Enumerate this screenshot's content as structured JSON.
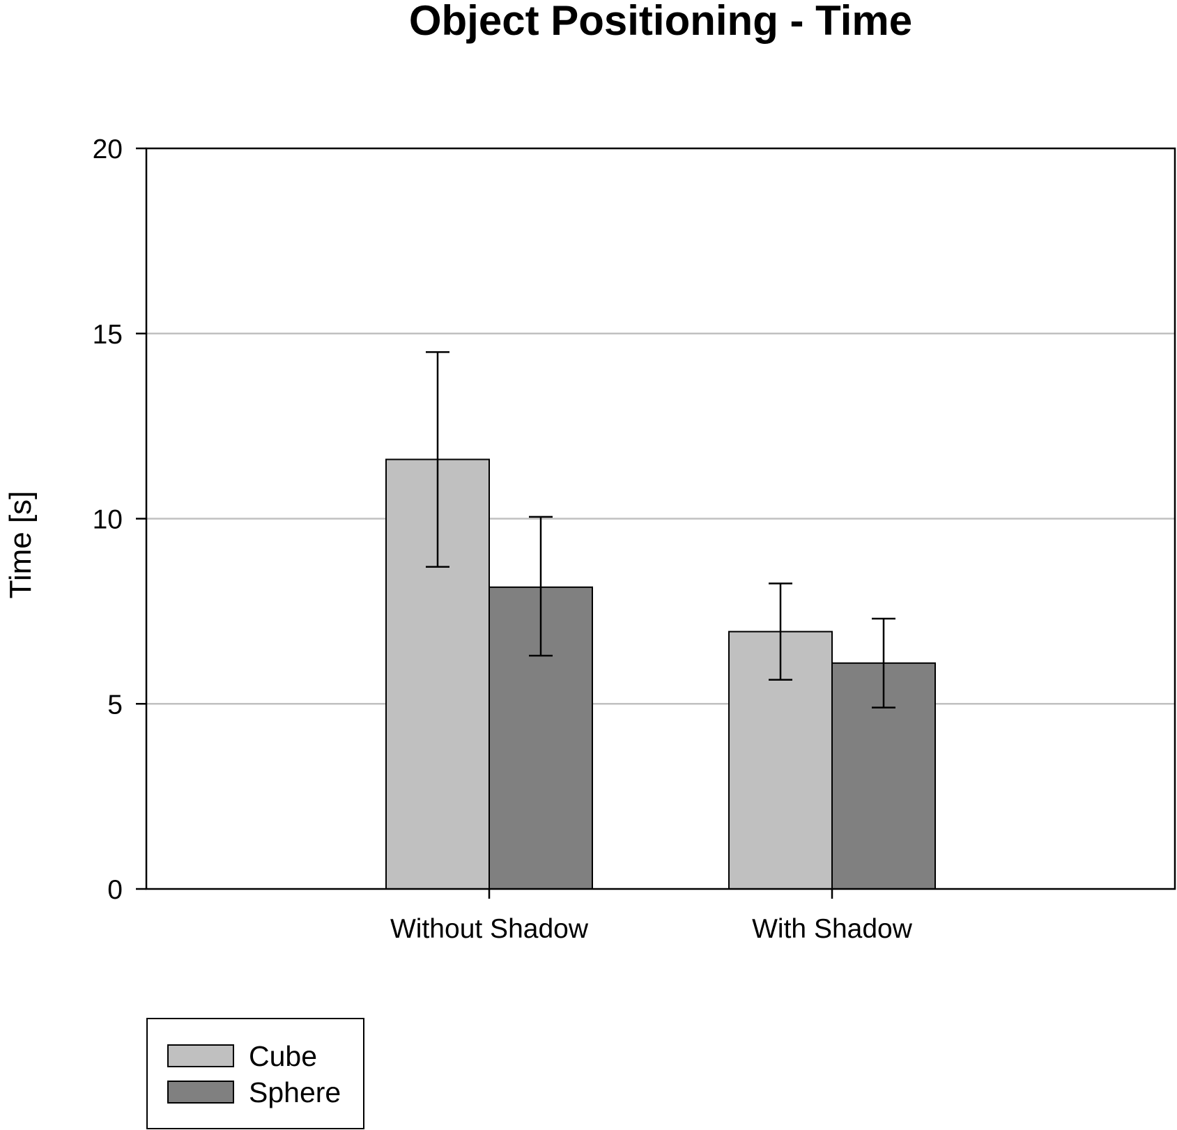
{
  "chart_data": {
    "type": "bar",
    "title": "Object Positioning - Time",
    "xlabel": "",
    "ylabel": "Time [s]",
    "ylim": [
      0,
      20
    ],
    "yticks": [
      0,
      5,
      10,
      15,
      20
    ],
    "grid": true,
    "legend_position": "bottom-left",
    "categories": [
      "Without Shadow",
      "With Shadow"
    ],
    "series": [
      {
        "name": "Cube",
        "color": "#c0c0c0",
        "values": [
          11.6,
          6.95
        ],
        "error_low": [
          8.7,
          5.65
        ],
        "error_high": [
          14.5,
          8.25
        ]
      },
      {
        "name": "Sphere",
        "color": "#808080",
        "values": [
          8.15,
          6.1
        ],
        "error_low": [
          6.3,
          4.9
        ],
        "error_high": [
          10.05,
          7.3
        ]
      }
    ]
  }
}
